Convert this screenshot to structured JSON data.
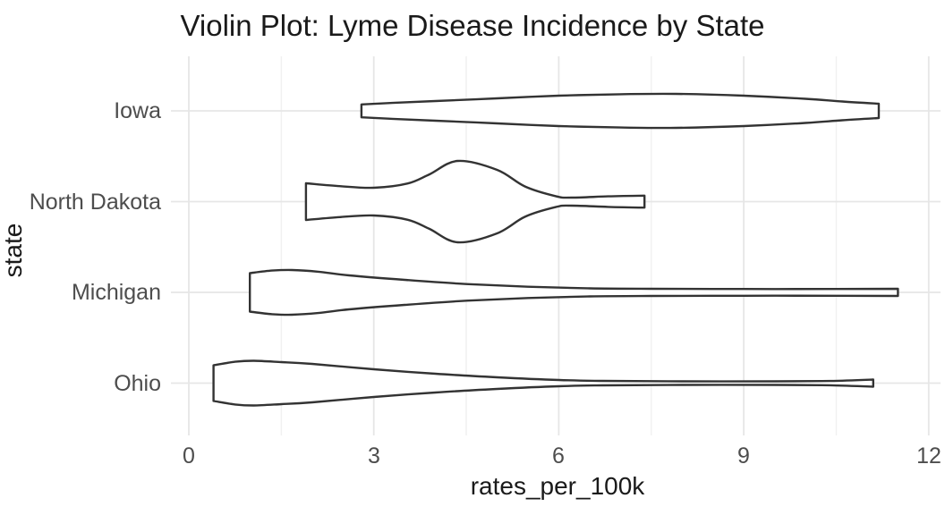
{
  "title": "Violin Plot: Lyme Disease Incidence by State",
  "axes": {
    "x_label": "rates_per_100k",
    "y_label": "state",
    "x_tick_labels": [
      "0",
      "3",
      "6",
      "9",
      "12"
    ],
    "y_tick_labels": [
      "Iowa",
      "North Dakota",
      "Michigan",
      "Ohio"
    ]
  },
  "colors": {
    "violin_stroke": "#333333",
    "violin_fill": "#ffffff",
    "grid_major": "#e6e6e6",
    "grid_minor": "#f1f1f1",
    "tick_text": "#4d4d4d",
    "title_text": "#1a1a1a"
  },
  "chart_data": {
    "type": "violin",
    "orientation": "horizontal",
    "title": "Violin Plot: Lyme Disease Incidence by State",
    "xlabel": "rates_per_100k",
    "ylabel": "state",
    "xlim": [
      -0.23,
      12.19
    ],
    "x_major_ticks": [
      0,
      3,
      6,
      9,
      12
    ],
    "x_minor_ticks": [
      1.5,
      4.5,
      7.5,
      10.5
    ],
    "grid": true,
    "legend": false,
    "categories": [
      "Iowa",
      "North Dakota",
      "Michigan",
      "Ohio"
    ],
    "violins": [
      {
        "state": "Iowa",
        "value_range": [
          2.8,
          11.2
        ],
        "peak_x": 7.9,
        "profile": [
          [
            2.8,
            0.071
          ],
          [
            3.3,
            0.088
          ],
          [
            4.0,
            0.108
          ],
          [
            5.0,
            0.138
          ],
          [
            6.0,
            0.167
          ],
          [
            7.0,
            0.183
          ],
          [
            7.9,
            0.187
          ],
          [
            9.0,
            0.167
          ],
          [
            10.0,
            0.133
          ],
          [
            10.6,
            0.103
          ],
          [
            11.19,
            0.079
          ]
        ]
      },
      {
        "state": "North Dakota",
        "value_range": [
          1.9,
          7.4
        ],
        "peak_x": 4.36,
        "profile": [
          [
            1.9,
            0.202
          ],
          [
            2.45,
            0.17
          ],
          [
            3.0,
            0.153
          ],
          [
            3.55,
            0.2
          ],
          [
            3.9,
            0.3
          ],
          [
            4.36,
            0.448
          ],
          [
            5.0,
            0.35
          ],
          [
            5.45,
            0.167
          ],
          [
            5.95,
            0.06
          ],
          [
            6.2,
            0.044
          ],
          [
            6.8,
            0.058
          ],
          [
            7.39,
            0.066
          ]
        ]
      },
      {
        "state": "Michigan",
        "value_range": [
          1.0,
          11.5
        ],
        "peak_x": 1.67,
        "profile": [
          [
            0.99,
            0.212
          ],
          [
            1.35,
            0.24
          ],
          [
            1.67,
            0.246
          ],
          [
            2.1,
            0.228
          ],
          [
            2.6,
            0.187
          ],
          [
            3.5,
            0.138
          ],
          [
            4.5,
            0.092
          ],
          [
            5.5,
            0.062
          ],
          [
            6.5,
            0.044
          ],
          [
            7.5,
            0.039
          ],
          [
            9.0,
            0.037
          ],
          [
            10.5,
            0.037
          ],
          [
            11.5,
            0.039
          ]
        ]
      },
      {
        "state": "Ohio",
        "value_range": [
          0.4,
          11.1
        ],
        "peak_x": 1.05,
        "profile": [
          [
            0.4,
            0.197
          ],
          [
            0.75,
            0.235
          ],
          [
            1.05,
            0.246
          ],
          [
            1.5,
            0.232
          ],
          [
            2.0,
            0.212
          ],
          [
            3.0,
            0.153
          ],
          [
            4.0,
            0.103
          ],
          [
            5.0,
            0.064
          ],
          [
            6.0,
            0.034
          ],
          [
            6.7,
            0.025
          ],
          [
            8.0,
            0.02
          ],
          [
            9.5,
            0.02
          ],
          [
            10.4,
            0.024
          ],
          [
            11.1,
            0.039
          ]
        ]
      }
    ]
  }
}
